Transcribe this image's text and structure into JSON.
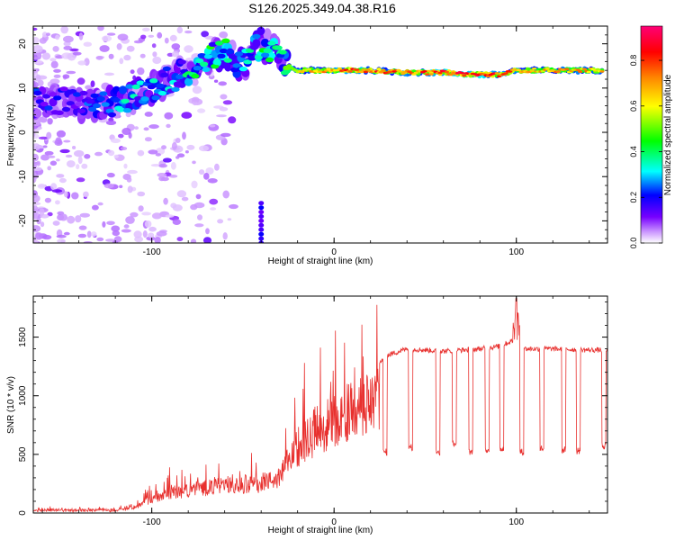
{
  "title": "S126.2025.349.04.38.R16",
  "chart_data": [
    {
      "type": "heatmap",
      "xlabel": "Height of straight line (km)",
      "ylabel": "Frequency (Hz)",
      "xlim": [
        -165,
        150
      ],
      "ylim": [
        -25,
        24
      ],
      "xticks": [
        -100,
        0,
        100
      ],
      "yticks": [
        -20,
        -10,
        0,
        10,
        20
      ],
      "colorbar": {
        "label": "Normalized spectral amplitude",
        "range": [
          0,
          0.95
        ],
        "ticks": [
          "0.0",
          "0.2",
          "0.4",
          "0.6",
          "0.8"
        ],
        "tick_values": [
          0,
          0.2,
          0.4,
          0.6,
          0.8
        ],
        "colors": [
          "#ffffff",
          "#cc99ff",
          "#7700ff",
          "#0000ff",
          "#00ffff",
          "#00ff00",
          "#ffff00",
          "#ff8800",
          "#ff0000",
          "#ff0077"
        ]
      },
      "ridge": {
        "x": [
          -160,
          -150,
          -140,
          -130,
          -120,
          -110,
          -100,
          -90,
          -80,
          -70,
          -60,
          -50,
          -45,
          -40,
          -35,
          -30,
          -25,
          -20,
          -10,
          0,
          10,
          20,
          40,
          60,
          80,
          90,
          100,
          120,
          140,
          148
        ],
        "frequency": [
          7,
          7,
          6,
          6,
          7,
          8,
          10,
          12,
          14,
          17,
          18,
          15,
          18,
          20,
          19,
          17,
          15,
          14,
          14,
          14,
          14,
          14,
          13.5,
          13.5,
          13,
          13,
          14,
          14,
          14,
          14
        ],
        "amplitude": [
          0.2,
          0.2,
          0.22,
          0.25,
          0.3,
          0.3,
          0.3,
          0.3,
          0.35,
          0.4,
          0.4,
          0.35,
          0.35,
          0.4,
          0.4,
          0.45,
          0.5,
          0.6,
          0.7,
          0.75,
          0.8,
          0.8,
          0.75,
          0.85,
          0.85,
          0.85,
          0.7,
          0.7,
          0.7,
          0.65
        ]
      }
    },
    {
      "type": "line",
      "xlabel": "Height of straight line (km)",
      "ylabel": "SNR (10 * v/v)",
      "xlim": [
        -165,
        150
      ],
      "ylim": [
        0,
        1850
      ],
      "xticks": [
        -100,
        0,
        100
      ],
      "yticks": [
        0,
        500,
        1000,
        1500
      ],
      "color": "#e8302e",
      "envelope": {
        "x": [
          -165,
          -120,
          -110,
          -100,
          -90,
          -80,
          -70,
          -60,
          -50,
          -40,
          -30,
          -25,
          -20,
          -15,
          -10,
          -5,
          0,
          5,
          10,
          15,
          20,
          25,
          30,
          40,
          60,
          80,
          90,
          95,
          100,
          105,
          120,
          140,
          150
        ],
        "snr": [
          30,
          30,
          60,
          150,
          220,
          250,
          280,
          300,
          300,
          320,
          380,
          550,
          700,
          800,
          900,
          950,
          1000,
          1050,
          1100,
          1150,
          1180,
          1280,
          1350,
          1400,
          1380,
          1400,
          1420,
          1450,
          1480,
          1400,
          1400,
          1390,
          1390
        ]
      },
      "dropouts": [
        {
          "x": 28,
          "snr": 520
        },
        {
          "x": 42,
          "snr": 560
        },
        {
          "x": 57,
          "snr": 520
        },
        {
          "x": 66,
          "snr": 600
        },
        {
          "x": 75,
          "snr": 520
        },
        {
          "x": 84,
          "snr": 540
        },
        {
          "x": 92,
          "snr": 550
        },
        {
          "x": 103,
          "snr": 520
        },
        {
          "x": 114,
          "snr": 550
        },
        {
          "x": 126,
          "snr": 540
        },
        {
          "x": 134,
          "snr": 530
        },
        {
          "x": 148,
          "snr": 570
        }
      ],
      "peak": {
        "x": 100,
        "snr": 1830
      }
    }
  ]
}
